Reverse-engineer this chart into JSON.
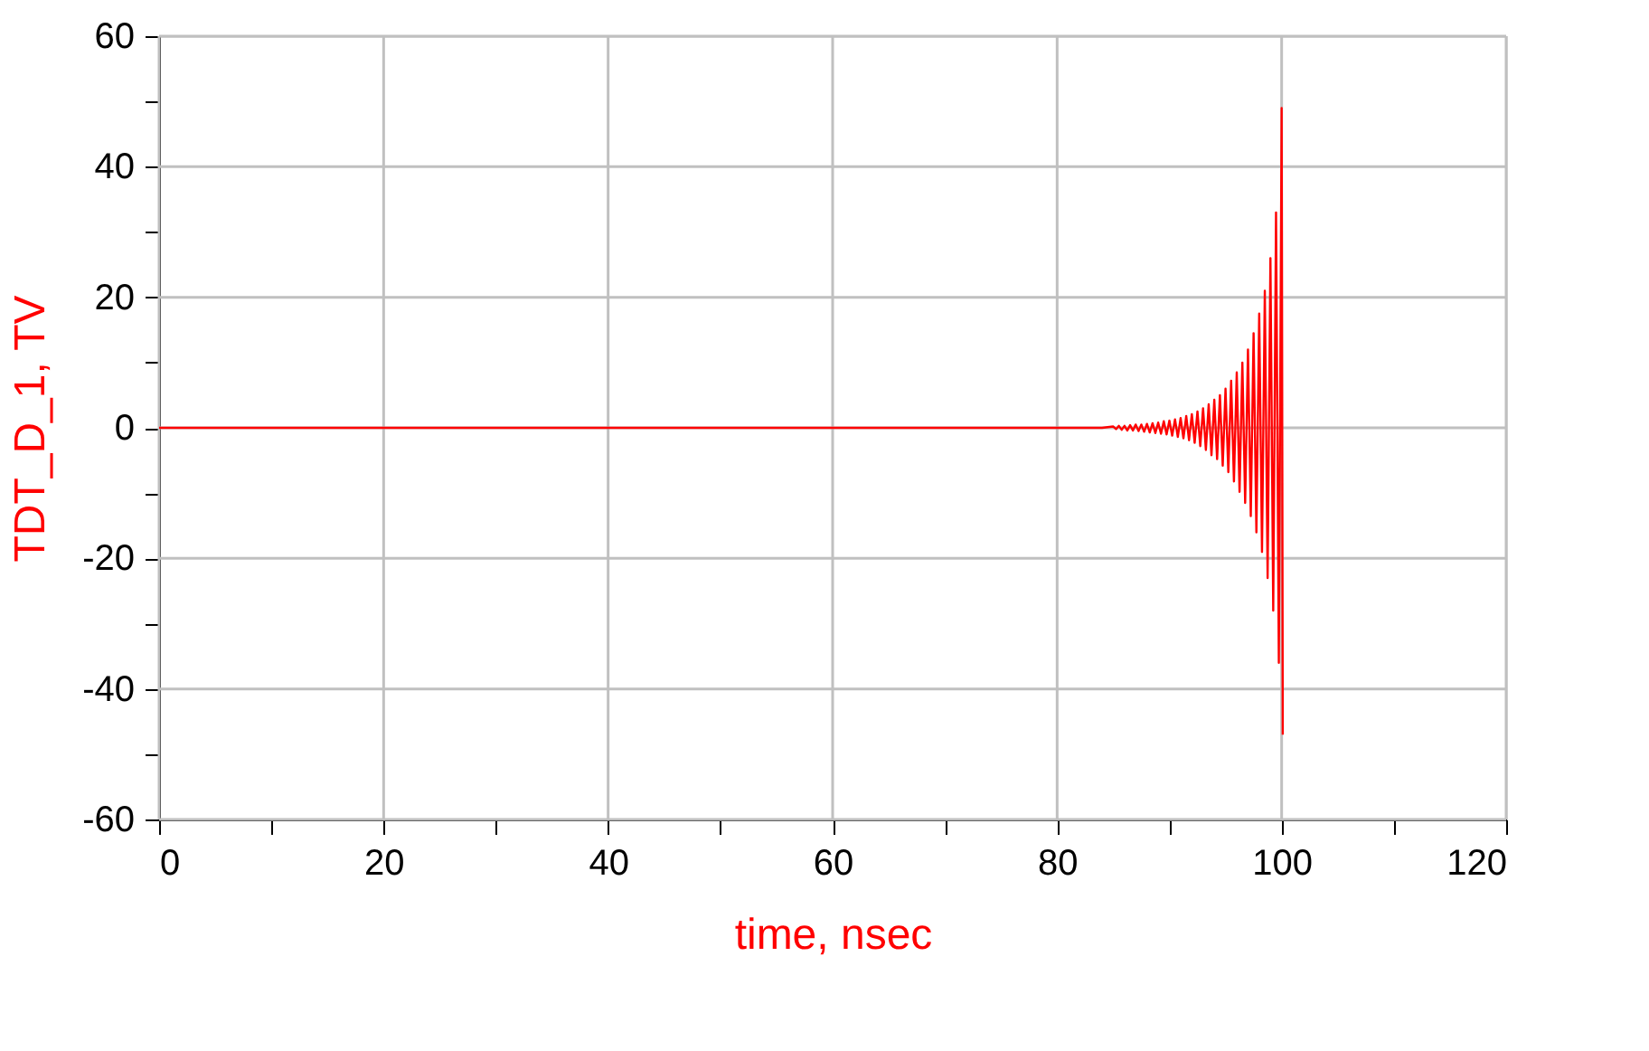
{
  "chart_data": {
    "type": "line",
    "xlabel": "time, nsec",
    "ylabel": "TDT_D_1, TV",
    "series": [
      {
        "color": "#ff0000",
        "x": [
          0,
          84,
          85.0,
          85.25,
          85.5,
          85.75,
          86,
          86.25,
          86.5,
          86.75,
          87,
          87.25,
          87.5,
          87.75,
          88,
          88.25,
          88.5,
          88.75,
          89,
          89.25,
          89.5,
          89.75,
          90,
          90.25,
          90.5,
          90.75,
          91,
          91.25,
          91.5,
          91.75,
          92,
          92.25,
          92.5,
          92.75,
          93,
          93.25,
          93.5,
          93.75,
          94,
          94.25,
          94.5,
          94.75,
          95,
          95.25,
          95.5,
          95.75,
          96,
          96.25,
          96.5,
          96.75,
          97,
          97.25,
          97.5,
          97.75,
          98,
          98.25,
          98.5,
          98.75,
          99,
          99.25,
          99.5,
          99.75,
          100,
          100.1
        ],
        "values": [
          0,
          0,
          0.2,
          -0.2,
          0.3,
          -0.3,
          0.3,
          -0.4,
          0.4,
          -0.4,
          0.5,
          -0.5,
          0.5,
          -0.6,
          0.6,
          -0.7,
          0.7,
          -0.8,
          0.8,
          -0.9,
          1.0,
          -1.0,
          1.1,
          -1.2,
          1.3,
          -1.4,
          1.5,
          -1.6,
          1.8,
          -1.9,
          2.1,
          -2.3,
          2.5,
          -2.8,
          3.0,
          -3.4,
          3.6,
          -4.2,
          4.3,
          -4.8,
          5.0,
          -5.8,
          6.0,
          -6.8,
          7.2,
          -8.2,
          8.5,
          -9.8,
          10,
          -11.5,
          12,
          -13.5,
          14.5,
          -16,
          17.5,
          -19,
          21,
          -23,
          26,
          -28,
          33,
          -36,
          49,
          -47
        ]
      }
    ],
    "xlim": [
      0,
      120
    ],
    "xticks": [
      0,
      {
        "value": 10,
        "label": null
      },
      20,
      {
        "value": 30,
        "label": null
      },
      40,
      {
        "value": 50,
        "label": null
      },
      60,
      {
        "value": 70,
        "label": null
      },
      80,
      {
        "value": 90,
        "label": null
      },
      100,
      {
        "value": 110,
        "label": null
      },
      120
    ],
    "ylim": [
      -60,
      60
    ],
    "yticks": [
      -60,
      {
        "value": -50,
        "label": null
      },
      -40,
      {
        "value": -30,
        "label": null
      },
      -20,
      {
        "value": -10,
        "label": null
      },
      0,
      {
        "value": 10,
        "label": null
      },
      20,
      {
        "value": 30,
        "label": null
      },
      40,
      {
        "value": 50,
        "label": null
      },
      60
    ],
    "grid": true,
    "marker": "none",
    "line_style": "solid"
  }
}
